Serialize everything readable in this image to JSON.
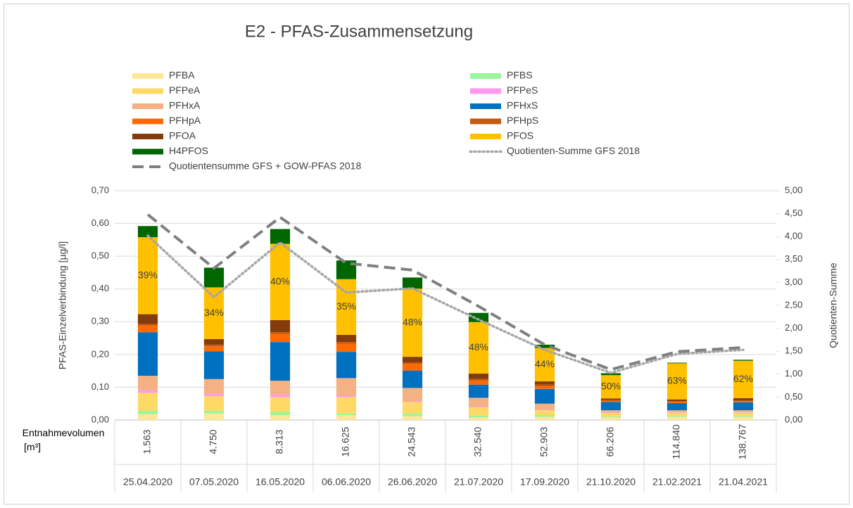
{
  "chart_data": {
    "type": "bar",
    "title": "E2 - PFAS-Zusammensetzung",
    "y_label": "PFAS-Einzelverbindung [µg/l]",
    "y2_label": "Quotienten-Summe",
    "volume_label": "Entnahmevolumen [m³]",
    "categories": [
      "25.04.2020",
      "07.05.2020",
      "16.05.2020",
      "06.06.2020",
      "26.06.2020",
      "21.07.2020",
      "17.09.2020",
      "21.10.2020",
      "21.02.2021",
      "21.04.2021"
    ],
    "volumes": [
      "1.563",
      "4.750",
      "8.313",
      "16.625",
      "24.543",
      "32.540",
      "52.903",
      "66.206",
      "114.840",
      "138.767"
    ],
    "stacked": true,
    "series": [
      {
        "name": "PFBA",
        "color": "#ffe699",
        "values": [
          0.018,
          0.02,
          0.015,
          0.015,
          0.012,
          0.008,
          0.01,
          0.008,
          0.01,
          0.01
        ]
      },
      {
        "name": "PFBS",
        "color": "#9bf59a",
        "values": [
          0.01,
          0.008,
          0.01,
          0.005,
          0.008,
          0.005,
          0.005,
          0.003,
          0.003,
          0.003
        ]
      },
      {
        "name": "PFPeA",
        "color": "#ffd966",
        "values": [
          0.055,
          0.045,
          0.045,
          0.05,
          0.035,
          0.025,
          0.015,
          0.01,
          0.01,
          0.01
        ]
      },
      {
        "name": "PFPeS",
        "color": "#ff99ee",
        "values": [
          0.008,
          0.007,
          0.008,
          0.003,
          0.003,
          0.002,
          0.002,
          0.002,
          0.002,
          0.002
        ]
      },
      {
        "name": "PFHxA",
        "color": "#f4b183",
        "values": [
          0.044,
          0.045,
          0.042,
          0.055,
          0.04,
          0.028,
          0.018,
          0.007,
          0.005,
          0.005
        ]
      },
      {
        "name": "PFHxS",
        "color": "#0070c0",
        "values": [
          0.133,
          0.085,
          0.118,
          0.08,
          0.053,
          0.04,
          0.045,
          0.025,
          0.022,
          0.024
        ]
      },
      {
        "name": "PFHpA",
        "color": "#ff6a00",
        "values": [
          0.02,
          0.015,
          0.025,
          0.025,
          0.02,
          0.012,
          0.008,
          0.004,
          0.004,
          0.004
        ]
      },
      {
        "name": "PFHpS",
        "color": "#c55a11",
        "values": [
          0.005,
          0.005,
          0.005,
          0.005,
          0.005,
          0.005,
          0.005,
          0.002,
          0.002,
          0.002
        ]
      },
      {
        "name": "PFOA",
        "color": "#843c0c",
        "values": [
          0.03,
          0.017,
          0.037,
          0.022,
          0.017,
          0.017,
          0.01,
          0.005,
          0.005,
          0.007
        ]
      },
      {
        "name": "PFOS",
        "color": "#ffc000",
        "values": [
          0.235,
          0.158,
          0.233,
          0.17,
          0.208,
          0.157,
          0.102,
          0.071,
          0.11,
          0.114
        ],
        "share_labels": [
          "39%",
          "34%",
          "40%",
          "35%",
          "48%",
          "48%",
          "44%",
          "50%",
          "63%",
          "62%"
        ]
      },
      {
        "name": "H4PFOS",
        "color": "#006600",
        "values": [
          0.034,
          0.06,
          0.045,
          0.057,
          0.034,
          0.028,
          0.01,
          0.006,
          0.002,
          0.003
        ]
      },
      {
        "name": "Quotienten-Summe GFS 2018",
        "type": "line",
        "dash": "dotted",
        "axis": "y2",
        "color": "#a6a6a6",
        "values": [
          4.02,
          2.68,
          3.87,
          2.78,
          2.87,
          2.19,
          1.53,
          1.03,
          1.44,
          1.53
        ]
      },
      {
        "name": "Quotientensumme GFS + GOW-PFAS 2018",
        "type": "line",
        "dash": "dashed",
        "axis": "y2",
        "color": "#7f7f7f",
        "values": [
          4.48,
          3.31,
          4.42,
          3.42,
          3.27,
          2.48,
          1.64,
          1.1,
          1.49,
          1.58
        ]
      }
    ],
    "ylim": [
      0,
      0.7
    ],
    "yticks": [
      {
        "value": 0,
        "label": "0,00"
      },
      {
        "value": 0.1,
        "label": "0,10"
      },
      {
        "value": 0.2,
        "label": "0,20"
      },
      {
        "value": 0.3,
        "label": "0,30"
      },
      {
        "value": 0.4,
        "label": "0,40"
      },
      {
        "value": 0.5,
        "label": "0,50"
      },
      {
        "value": 0.6,
        "label": "0,60"
      },
      {
        "value": 0.7,
        "label": "0,70"
      }
    ],
    "y2lim": [
      0,
      5
    ],
    "y2ticks": [
      {
        "value": 0,
        "label": "0,00"
      },
      {
        "value": 0.5,
        "label": "0,50"
      },
      {
        "value": 1,
        "label": "1,00"
      },
      {
        "value": 1.5,
        "label": "1,50"
      },
      {
        "value": 2,
        "label": "2,00"
      },
      {
        "value": 2.5,
        "label": "2,50"
      },
      {
        "value": 3,
        "label": "3,00"
      },
      {
        "value": 3.5,
        "label": "3,50"
      },
      {
        "value": 4,
        "label": "4,00"
      },
      {
        "value": 4.5,
        "label": "4,50"
      },
      {
        "value": 5,
        "label": "5,00"
      }
    ],
    "grid": true
  }
}
